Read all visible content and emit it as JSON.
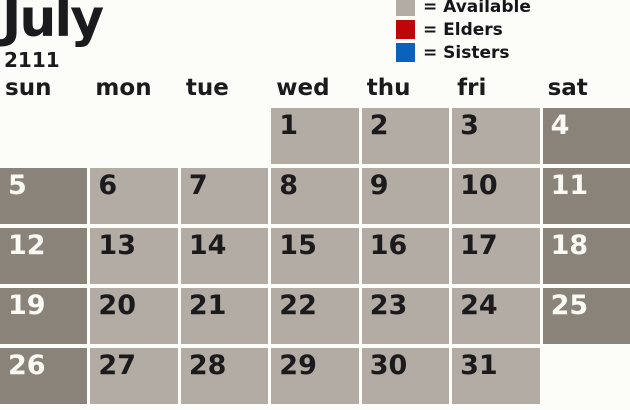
{
  "page": {
    "background": "#fcfdf8"
  },
  "header": {
    "month": "July",
    "year": "2111"
  },
  "legend": [
    {
      "name": "available",
      "swatch_color": "#b3aca4",
      "label": "= Available"
    },
    {
      "name": "elders",
      "swatch_color": "#c00508",
      "label": "= Elders"
    },
    {
      "name": "sisters",
      "swatch_color": "#0b62bd",
      "label": "= Sisters"
    }
  ],
  "weekdays": [
    "sun",
    "mon",
    "tue",
    "wed",
    "thu",
    "fri",
    "sat"
  ],
  "calendar": {
    "month": "July",
    "year": "2111",
    "day_colors": {
      "weekday_bg": "#b3aca4",
      "weekday_text": "#1b1b1d",
      "weekend_bg": "#8a8379",
      "weekend_text": "#fafaf5"
    },
    "weeks": [
      [
        {
          "style": "empty"
        },
        {
          "style": "empty"
        },
        {
          "style": "empty"
        },
        {
          "date": "1",
          "style": "weekday"
        },
        {
          "date": "2",
          "style": "weekday"
        },
        {
          "date": "3",
          "style": "weekday"
        },
        {
          "date": "4",
          "style": "weekend"
        }
      ],
      [
        {
          "date": "5",
          "style": "weekend"
        },
        {
          "date": "6",
          "style": "weekday"
        },
        {
          "date": "7",
          "style": "weekday"
        },
        {
          "date": "8",
          "style": "weekday"
        },
        {
          "date": "9",
          "style": "weekday"
        },
        {
          "date": "10",
          "style": "weekday"
        },
        {
          "date": "11",
          "style": "weekend"
        }
      ],
      [
        {
          "date": "12",
          "style": "weekend"
        },
        {
          "date": "13",
          "style": "weekday"
        },
        {
          "date": "14",
          "style": "weekday"
        },
        {
          "date": "15",
          "style": "weekday"
        },
        {
          "date": "16",
          "style": "weekday"
        },
        {
          "date": "17",
          "style": "weekday"
        },
        {
          "date": "18",
          "style": "weekend"
        }
      ],
      [
        {
          "date": "19",
          "style": "weekend"
        },
        {
          "date": "20",
          "style": "weekday"
        },
        {
          "date": "21",
          "style": "weekday"
        },
        {
          "date": "22",
          "style": "weekday"
        },
        {
          "date": "23",
          "style": "weekday"
        },
        {
          "date": "24",
          "style": "weekday"
        },
        {
          "date": "25",
          "style": "weekend"
        }
      ],
      [
        {
          "date": "26",
          "style": "weekend"
        },
        {
          "date": "27",
          "style": "weekday"
        },
        {
          "date": "28",
          "style": "weekday"
        },
        {
          "date": "29",
          "style": "weekday"
        },
        {
          "date": "30",
          "style": "weekday"
        },
        {
          "date": "31",
          "style": "weekday"
        },
        {
          "style": "empty"
        }
      ]
    ]
  }
}
